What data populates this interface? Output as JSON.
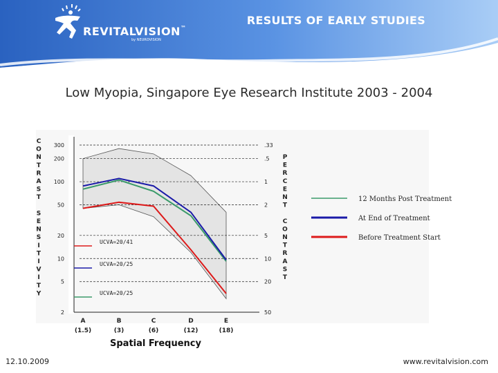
{
  "header": {
    "brand": "REVITALVISION",
    "brand_trademark": "™",
    "brand_sub": "by NEUROVISION",
    "title": "RESULTS OF EARLY STUDIES"
  },
  "subtitle": "Low Myopia, Singapore Eye Research Institute 2003 - 2004",
  "footer": {
    "date": "12.10.2009",
    "website": "www.revitalvision.com"
  },
  "colors": {
    "green": "#3a9a6a",
    "blue": "#1a1aa8",
    "red": "#dd1a1a",
    "band": "#e4e4e4"
  },
  "chart_data": {
    "type": "line",
    "xlabel": "Spatial Frequency",
    "ylabel_left": "CONTRAST SENSITIVITY",
    "ylabel_right": "PERCENT CONTRAST",
    "categories": [
      "A",
      "B",
      "C",
      "D",
      "E"
    ],
    "category_sublabels": [
      "(1.5)",
      "(3)",
      "(6)",
      "(12)",
      "(18)"
    ],
    "yscale": "log",
    "ylim": [
      2,
      300
    ],
    "yticks_left": [
      "300",
      "200",
      "100",
      "50",
      "20",
      "10",
      "5",
      "2"
    ],
    "yticks_right": [
      ".33",
      ".5",
      "1",
      "2",
      "5",
      "10",
      "20",
      "50"
    ],
    "norm_band_upper": [
      200,
      270,
      230,
      120,
      40
    ],
    "norm_band_lower": [
      45,
      50,
      35,
      12,
      3
    ],
    "series": [
      {
        "name": "12 Months Post Treatment",
        "ucva": "UCVA=20/25",
        "color": "#3a9a6a",
        "values": [
          80,
          105,
          75,
          36,
          9.2
        ]
      },
      {
        "name": "At End of Treatment",
        "ucva": "UCVA=20/25",
        "color": "#1a1aa8",
        "values": [
          88,
          110,
          88,
          40,
          9.6
        ]
      },
      {
        "name": "Before Treatment Start",
        "ucva": "UCVA=20/41",
        "color": "#dd1a1a",
        "values": [
          45,
          54,
          48,
          13,
          3.5
        ]
      }
    ]
  }
}
